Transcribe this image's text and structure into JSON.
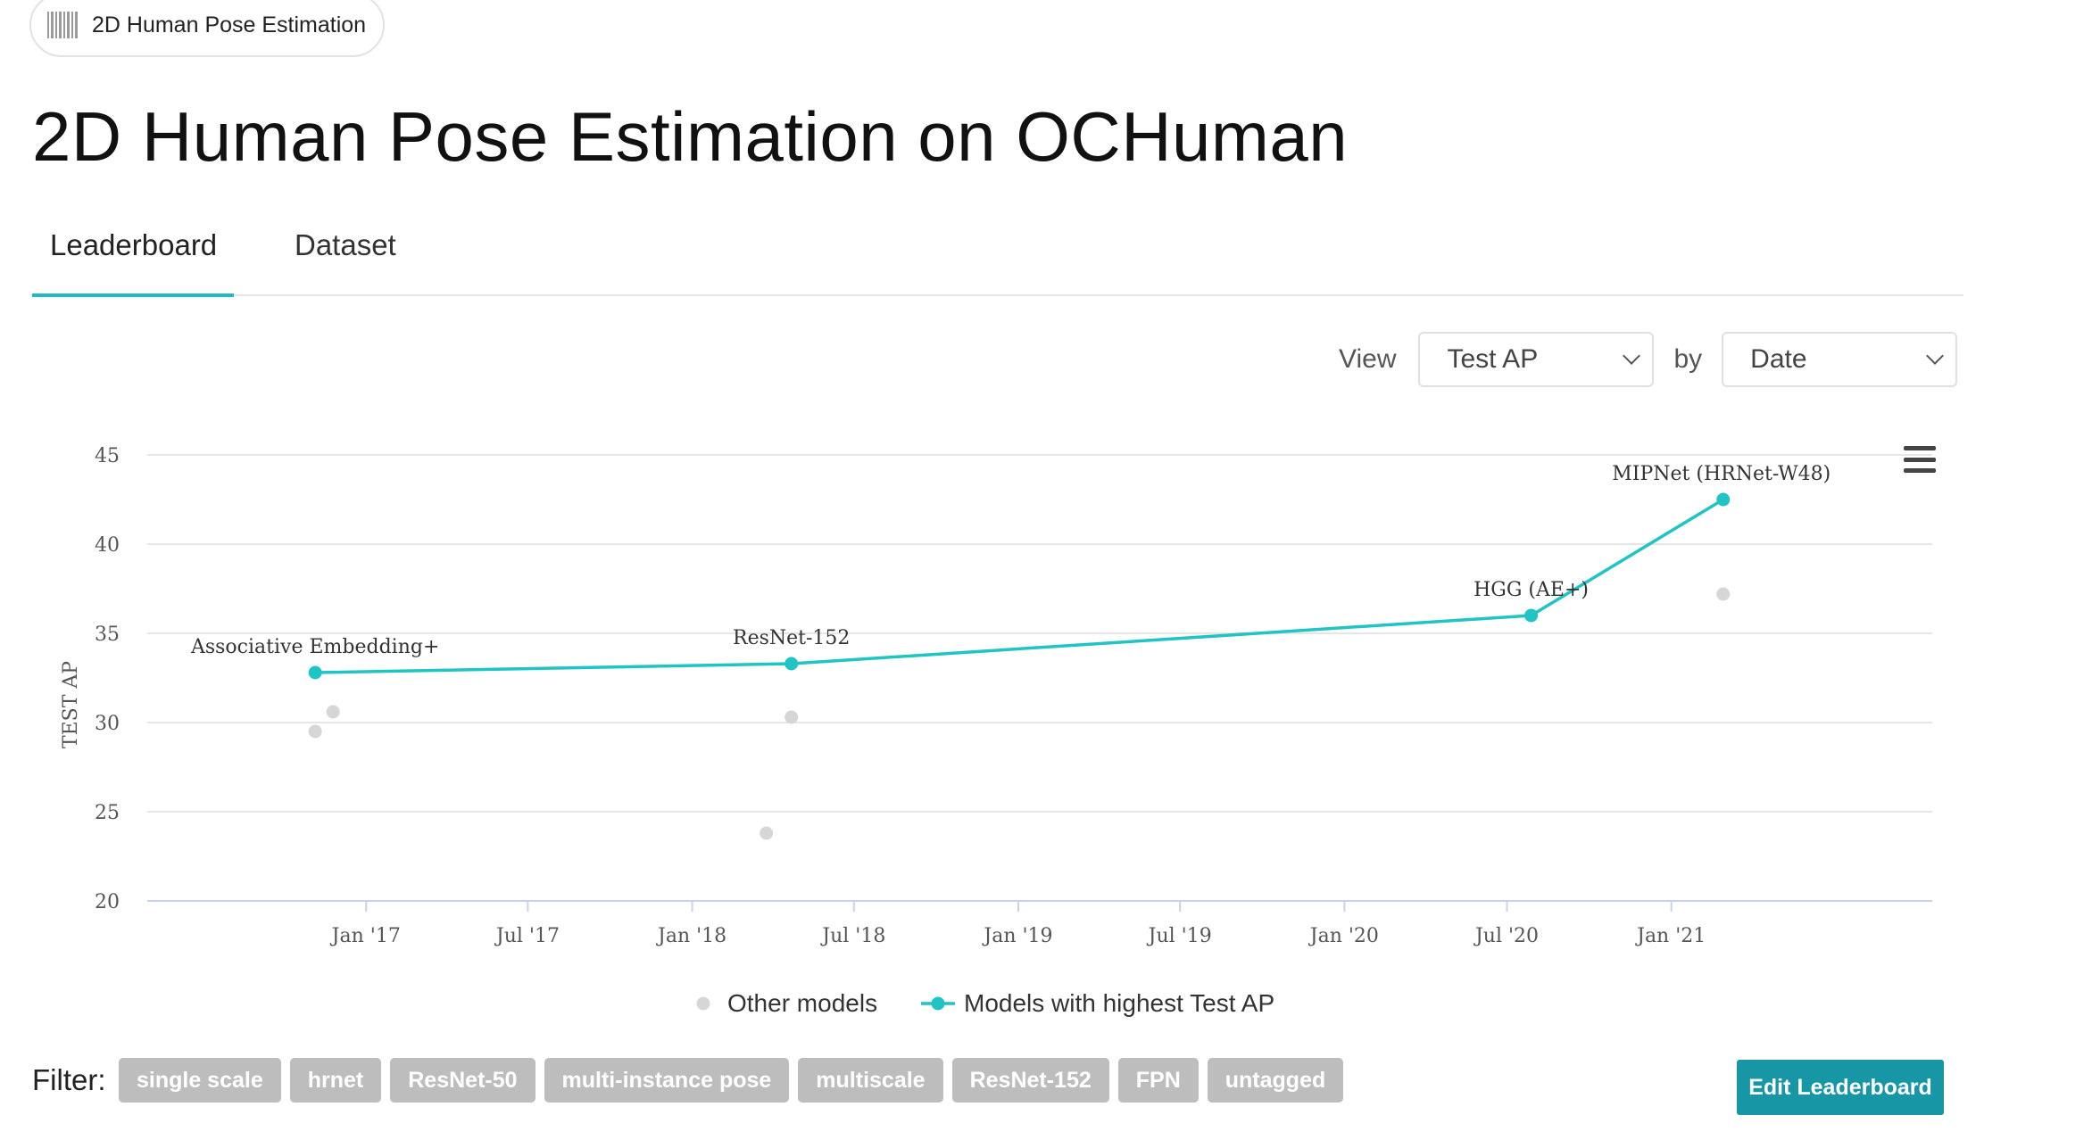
{
  "breadcrumb": {
    "label": "2D Human Pose Estimation",
    "icon": "barcode-icon"
  },
  "page": {
    "title": "2D Human Pose Estimation on OCHuman"
  },
  "tabs": [
    {
      "label": "Leaderboard",
      "active": true
    },
    {
      "label": "Dataset",
      "active": false
    }
  ],
  "view_controls": {
    "view_label": "View",
    "metric": "Test AP",
    "by_label": "by",
    "axis": "Date"
  },
  "chart_data": {
    "type": "scatter",
    "ylabel": "TEST AP",
    "ylim": [
      20,
      45
    ],
    "yticks": [
      20,
      25,
      30,
      35,
      40,
      45
    ],
    "xticks": [
      "Jan '17",
      "Jul '17",
      "Jan '18",
      "Jul '18",
      "Jan '19",
      "Jul '19",
      "Jan '20",
      "Jul '20",
      "Jan '21"
    ],
    "grid": true,
    "legend": {
      "placement": "bottom-center"
    },
    "series": [
      {
        "name": "Other models",
        "color": "#d6d6d6",
        "points": [
          {
            "date": "2016-11-05",
            "value": 29.5
          },
          {
            "date": "2016-11-25",
            "value": 30.6
          },
          {
            "date": "2018-03-25",
            "value": 23.8
          },
          {
            "date": "2018-04-22",
            "value": 30.3
          },
          {
            "date": "2021-02-28",
            "value": 37.2
          }
        ]
      },
      {
        "name": "Models with highest Test AP",
        "color": "#21c4c4",
        "line": true,
        "points": [
          {
            "date": "2016-11-05",
            "value": 32.8,
            "label": "Associative Embedding+"
          },
          {
            "date": "2018-04-22",
            "value": 33.3,
            "label": "ResNet-152"
          },
          {
            "date": "2020-07-28",
            "value": 36.0,
            "label": "HGG (AE+)"
          },
          {
            "date": "2021-02-28",
            "value": 42.5,
            "label": "MIPNet (HRNet-W48)"
          }
        ]
      }
    ]
  },
  "filter": {
    "label": "Filter:",
    "tags": [
      "single scale",
      "hrnet",
      "ResNet-50",
      "multi-instance pose",
      "multiscale",
      "ResNet-152",
      "FPN",
      "untagged"
    ]
  },
  "actions": {
    "edit_label": "Edit Leaderboard"
  }
}
